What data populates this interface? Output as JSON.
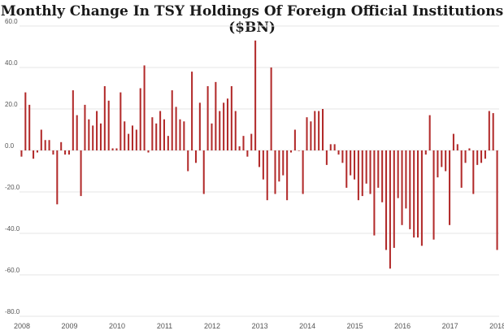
{
  "chart_data": {
    "type": "bar",
    "title": "Monthly Change In TSY Holdings Of Foreign Official Institutions ($BN)",
    "xlabel": "",
    "ylabel": "",
    "ylim": [
      -80,
      60
    ],
    "y_ticks": [
      60,
      40,
      20,
      0,
      -20,
      -40,
      -60,
      -80
    ],
    "y_tick_labels": [
      "60.0",
      "40.0",
      "20.0",
      "0.0",
      "-20.0",
      "-40.0",
      "-60.0",
      "-80.0"
    ],
    "x_tick_labels": [
      "2008",
      "2009",
      "2010",
      "2011",
      "2012",
      "2013",
      "2014",
      "2015",
      "2016",
      "2017",
      "2018"
    ],
    "grid": true,
    "bar_color": "#b22b2b",
    "start": "2008-01",
    "values": [
      -3,
      28,
      22,
      -4,
      -1,
      10,
      5,
      5,
      -2,
      -26,
      4,
      -2,
      -2,
      29,
      17,
      -22,
      22,
      15,
      12,
      19,
      13,
      31,
      24,
      1,
      1,
      28,
      14,
      8,
      12,
      10,
      30,
      41,
      -1,
      16,
      13,
      19,
      15,
      7,
      29,
      21,
      15,
      14,
      -10,
      38,
      -6,
      23,
      -21,
      31,
      13,
      33,
      19,
      23,
      25,
      31,
      19,
      2,
      7,
      -3,
      8,
      53,
      -8,
      -14,
      -24,
      40,
      -21,
      -15,
      -12,
      -24,
      -1,
      10,
      0,
      -21,
      16,
      14,
      19,
      19,
      20,
      -7,
      3,
      3,
      -2,
      -6,
      -18,
      -12,
      -14,
      -24,
      -22,
      -16,
      -21,
      -41,
      -18,
      -25,
      -48,
      -57,
      -47,
      -23,
      -36,
      -28,
      -38,
      -42,
      -42,
      -46,
      -2,
      17,
      -43,
      -13,
      -8,
      -10,
      -36,
      8,
      3,
      -18,
      -6,
      1,
      -21,
      -7,
      -6,
      -4,
      19,
      18,
      -48
    ]
  }
}
